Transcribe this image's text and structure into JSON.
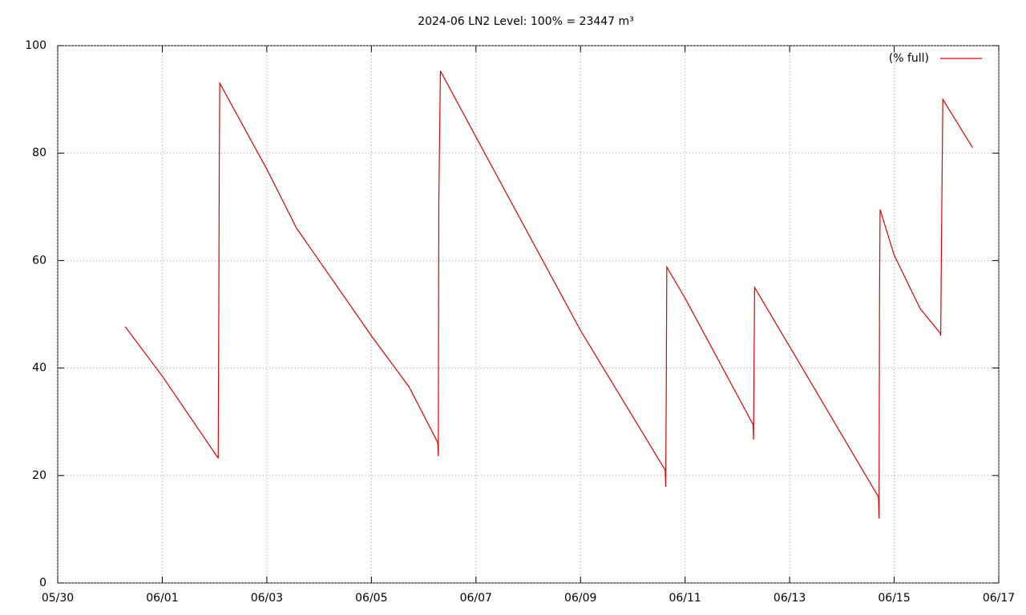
{
  "chart_data": {
    "type": "line",
    "title": "2024-06 LN2 Level: 100% = 23447 m³",
    "x": [
      1.29,
      2.0,
      3.05,
      3.07,
      3.08,
      3.09,
      3.1,
      4.0,
      4.57,
      6.0,
      6.72,
      7.25,
      7.27,
      7.28,
      7.29,
      7.32,
      8.0,
      10.0,
      11.62,
      11.63,
      11.64,
      11.65,
      12.0,
      13.3,
      13.31,
      13.33,
      14.0,
      15.7,
      15.71,
      15.72,
      15.73,
      16.0,
      16.5,
      16.88,
      16.89,
      16.91,
      16.93,
      17.5
    ],
    "series": [
      {
        "name": "(% full)",
        "color": "#e00000",
        "values": [
          47.7,
          38.5,
          23.5,
          23.3,
          47.5,
          78,
          93,
          77,
          66,
          46,
          36.5,
          26.5,
          26,
          23.6,
          71,
          95.3,
          83,
          47,
          21,
          17.9,
          35,
          58.8,
          53,
          29.5,
          26.7,
          55,
          44,
          16,
          12,
          54,
          69.5,
          61,
          51,
          46.5,
          46,
          69,
          90,
          81
        ]
      }
    ],
    "xlim": [
      0,
      18
    ],
    "xticks": [
      {
        "value": 0,
        "label": "05/30"
      },
      {
        "value": 2,
        "label": "06/01"
      },
      {
        "value": 4,
        "label": "06/03"
      },
      {
        "value": 6,
        "label": "06/05"
      },
      {
        "value": 8,
        "label": "06/07"
      },
      {
        "value": 10,
        "label": "06/09"
      },
      {
        "value": 12,
        "label": "06/11"
      },
      {
        "value": 14,
        "label": "06/13"
      },
      {
        "value": 16,
        "label": "06/15"
      },
      {
        "value": 18,
        "label": "06/17"
      }
    ],
    "ylim": [
      0,
      100
    ],
    "yticks": [
      0,
      20,
      40,
      60,
      80,
      100
    ],
    "grid": true,
    "legend": "top-right"
  }
}
